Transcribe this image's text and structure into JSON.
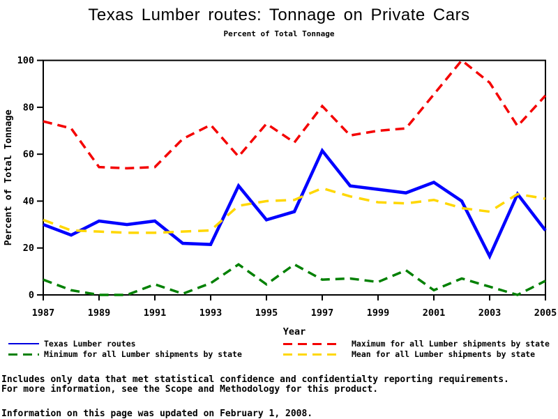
{
  "header": {
    "title": "Texas Lumber routes: Tonnage on Private Cars",
    "subtitle": "Percent of Total Tonnage"
  },
  "chart_data": {
    "type": "line",
    "title": "Texas Lumber routes: Tonnage on Private Cars",
    "subtitle": "Percent of Total Tonnage",
    "xlabel": "Year",
    "ylabel": "Percent of Total Tonnage",
    "ylim": [
      0,
      100
    ],
    "yticks": [
      0,
      20,
      40,
      60,
      80,
      100
    ],
    "xticks": [
      1987,
      1989,
      1991,
      1993,
      1995,
      1997,
      1999,
      2001,
      2003,
      2005
    ],
    "grid": false,
    "legend_position": "bottom",
    "x": [
      1987,
      1988,
      1989,
      1990,
      1991,
      1992,
      1993,
      1994,
      1995,
      1996,
      1997,
      1998,
      1999,
      2000,
      2001,
      2002,
      2003,
      2004,
      2005
    ],
    "series": [
      {
        "name": "Texas Lumber routes",
        "color": "#0000ff",
        "dash": "solid",
        "width": 4.5,
        "values": [
          30,
          25.5,
          31.5,
          30,
          31.5,
          22,
          21.5,
          46.5,
          32,
          35.5,
          61.5,
          46.5,
          45,
          43.5,
          48,
          40,
          16.5,
          43,
          27.5
        ]
      },
      {
        "name": "Maximum for all Lumber shipments by state",
        "color": "#f40000",
        "dash": "dashed",
        "width": 3.5,
        "values": [
          74,
          71,
          54.5,
          54,
          54.5,
          66.5,
          72.5,
          59,
          73,
          65,
          80.5,
          68,
          70,
          71,
          85.5,
          100,
          90.5,
          72,
          85
        ]
      },
      {
        "name": "Minimum for all Lumber shipments by state",
        "color": "#008000",
        "dash": "dashed",
        "width": 3.5,
        "values": [
          6.5,
          2,
          0,
          0,
          4.5,
          0.5,
          5,
          13,
          4.5,
          13,
          6.5,
          7,
          5.5,
          10.5,
          2,
          7,
          3.5,
          0,
          6
        ]
      },
      {
        "name": "Mean for all Lumber shipments by state",
        "color": "#ffd700",
        "dash": "dashed",
        "width": 3.5,
        "values": [
          32,
          27.5,
          27,
          26.5,
          26.5,
          27,
          27.5,
          38,
          40,
          40.5,
          45.5,
          42,
          39.5,
          39,
          40.5,
          37,
          35.5,
          43,
          41
        ]
      }
    ]
  },
  "legend": {
    "items": [
      {
        "label": "Texas Lumber routes",
        "color": "#0000e0",
        "dash": "solid"
      },
      {
        "label": "Minimum for all Lumber shipments by state",
        "color": "#008000",
        "dash": "dashed"
      },
      {
        "label": "Maximum for all Lumber shipments by state",
        "color": "#f40000",
        "dash": "dashed"
      },
      {
        "label": "Mean for all Lumber shipments by state",
        "color": "#ffd700",
        "dash": "dashed"
      }
    ]
  },
  "footnotes": {
    "line1": "Includes only data that met statistical confidence and confidentialty reporting requirements.",
    "line2": "For more information, see the Scope and Methodology for this product.",
    "updated": "Information on this page was updated on February 1, 2008."
  }
}
